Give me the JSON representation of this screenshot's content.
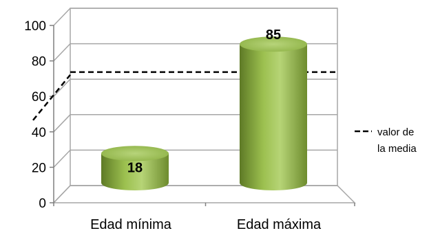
{
  "chart_data": {
    "type": "bar",
    "style": "3d-cylinder",
    "categories": [
      "Edad mínima",
      "Edad máxima"
    ],
    "values": [
      18,
      85
    ],
    "data_labels": [
      "18",
      "85"
    ],
    "ylim": [
      0,
      100
    ],
    "yticks": [
      0,
      20,
      40,
      60,
      80,
      100
    ],
    "ytick_labels": [
      "0",
      "20",
      "40",
      "60",
      "80",
      "100"
    ],
    "reference_line": {
      "value": 64,
      "label": "valor de la media",
      "label_lines": [
        "valor de",
        "la media"
      ],
      "style": "dashed"
    },
    "legend": {
      "position": "right"
    },
    "grid": true,
    "colors": {
      "bar": "#8db443",
      "bar_dark": "#5e7a26",
      "bar_light": "#c3dc82",
      "top": "#a8c95f",
      "grid": "#a6a6a6",
      "reference": "#000000"
    }
  }
}
